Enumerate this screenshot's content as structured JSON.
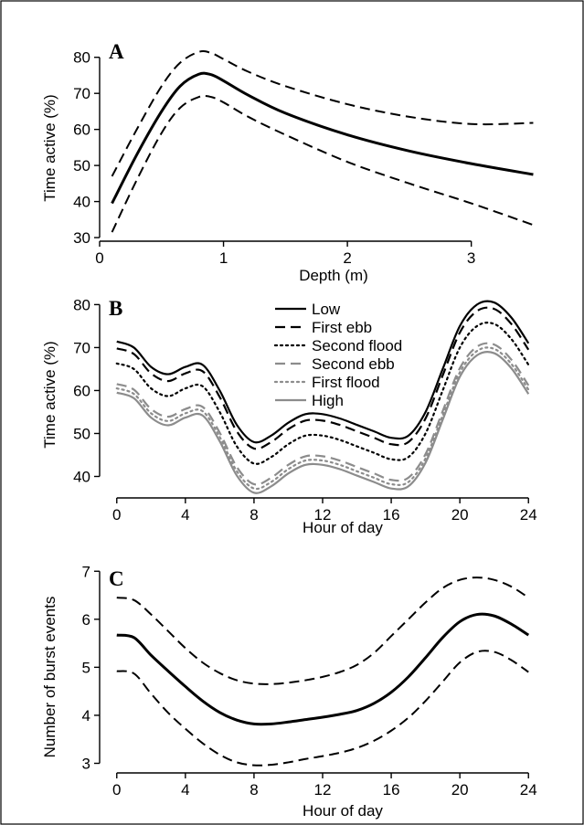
{
  "chart_data": [
    {
      "panel": "A",
      "type": "line",
      "xlabel": "Depth (m)",
      "ylabel": "Time active (%)",
      "xlim": [
        0,
        3.6
      ],
      "ylim": [
        29,
        85
      ],
      "xticks": [
        0,
        1,
        2,
        3
      ],
      "yticks": [
        30,
        40,
        50,
        60,
        70,
        80
      ],
      "grid": false,
      "series": [
        {
          "style": "solid",
          "color": "#000000",
          "width": 3,
          "x": [
            0.1,
            0.3,
            0.5,
            0.65,
            0.8,
            0.9,
            1.0,
            1.2,
            1.5,
            2.0,
            2.5,
            3.0,
            3.5
          ],
          "y": [
            39.5,
            53,
            65,
            72,
            75.3,
            75.2,
            73.5,
            69.5,
            64.5,
            58.5,
            54,
            50.5,
            47.5
          ]
        },
        {
          "style": "dashed",
          "color": "#000000",
          "width": 2,
          "x": [
            0.1,
            0.3,
            0.5,
            0.65,
            0.8,
            0.9,
            1.0,
            1.2,
            1.5,
            2.0,
            2.5,
            3.0,
            3.5
          ],
          "y": [
            47,
            60,
            72,
            78.5,
            81.5,
            81.2,
            79.5,
            76,
            72,
            67,
            63.5,
            61.5,
            61.8
          ]
        },
        {
          "style": "dashed",
          "color": "#000000",
          "width": 2,
          "x": [
            0.1,
            0.3,
            0.5,
            0.65,
            0.8,
            0.9,
            1.0,
            1.2,
            1.5,
            2.0,
            2.5,
            3.0,
            3.5
          ],
          "y": [
            31.5,
            46,
            59,
            66,
            69,
            69,
            67.5,
            63.5,
            58.5,
            51,
            45,
            39.5,
            33.5
          ]
        }
      ]
    },
    {
      "panel": "B",
      "type": "line",
      "xlabel": "Hour of day",
      "ylabel": "Time active (%)",
      "xlim": [
        -1,
        25
      ],
      "ylim": [
        35,
        82
      ],
      "xticks": [
        0,
        4,
        8,
        12,
        16,
        20,
        24
      ],
      "yticks": [
        40,
        50,
        60,
        70,
        80
      ],
      "grid": false,
      "legend_position": "top-center",
      "x": [
        0,
        1,
        2,
        3,
        4,
        5,
        6,
        7,
        8,
        9,
        10,
        11,
        12,
        13,
        14,
        15,
        16,
        17,
        18,
        19,
        20,
        21,
        22,
        23,
        24
      ],
      "series": [
        {
          "name": "Low",
          "style": "solid",
          "color": "#000000",
          "y": [
            71.4,
            70,
            65.5,
            63.8,
            65.5,
            66,
            60,
            52,
            48,
            49.5,
            52.5,
            54.5,
            54.5,
            53.5,
            52,
            50.5,
            49,
            49.5,
            55,
            65,
            75,
            80,
            80.5,
            77,
            71
          ]
        },
        {
          "name": "First ebb",
          "style": "dashed",
          "color": "#000000",
          "y": [
            69.8,
            68.5,
            64,
            62.2,
            64,
            64.5,
            58.5,
            50.5,
            46.5,
            48,
            51,
            53,
            53,
            52,
            50.5,
            49,
            47.5,
            48,
            53.5,
            63.5,
            73.5,
            78.5,
            79,
            75.5,
            69.5
          ]
        },
        {
          "name": "Second flood",
          "style": "dotted",
          "color": "#000000",
          "y": [
            66.3,
            65,
            60.5,
            58.7,
            60.5,
            61,
            55,
            47,
            43,
            44.5,
            47.5,
            49.5,
            49.5,
            48.5,
            47,
            45.5,
            44,
            44.5,
            50,
            60,
            70,
            75,
            75.5,
            72,
            66
          ]
        },
        {
          "name": "Second ebb",
          "style": "dashed",
          "color": "#8c8c8c",
          "y": [
            61.5,
            60.2,
            55.7,
            53.9,
            55.7,
            56.2,
            50.2,
            42.2,
            38.2,
            39.7,
            42.7,
            44.7,
            44.7,
            43.7,
            42.2,
            40.7,
            39.2,
            39.7,
            45.2,
            55.2,
            65.2,
            70.2,
            70.7,
            67.2,
            61.2
          ]
        },
        {
          "name": "First flood",
          "style": "dotted",
          "color": "#8c8c8c",
          "y": [
            60.5,
            59.2,
            54.7,
            52.9,
            54.7,
            55.2,
            49.2,
            41.2,
            37.2,
            38.7,
            41.7,
            43.7,
            43.7,
            42.7,
            41.2,
            39.7,
            38.2,
            38.7,
            44.2,
            54.2,
            64.2,
            69.2,
            69.7,
            66.2,
            60.2
          ]
        },
        {
          "name": "High",
          "style": "solid",
          "color": "#8c8c8c",
          "y": [
            59.5,
            58.2,
            53.7,
            51.9,
            53.7,
            54.2,
            48.2,
            40.2,
            36.2,
            37.7,
            40.7,
            42.7,
            42.7,
            41.7,
            40.2,
            38.7,
            37.2,
            37.7,
            43.2,
            53.2,
            63.2,
            68.2,
            68.7,
            65.2,
            59.2
          ]
        }
      ]
    },
    {
      "panel": "C",
      "type": "line",
      "xlabel": "Hour of day",
      "ylabel": "Number of burst events",
      "xlim": [
        -1,
        25
      ],
      "ylim": [
        2.8,
        7.1
      ],
      "xticks": [
        0,
        4,
        8,
        12,
        16,
        20,
        24
      ],
      "yticks": [
        3,
        4,
        5,
        6,
        7
      ],
      "grid": false,
      "x": [
        0,
        1,
        2,
        3,
        4,
        5,
        6,
        7,
        8,
        9,
        10,
        11,
        12,
        13,
        14,
        15,
        16,
        17,
        18,
        19,
        20,
        21,
        22,
        23,
        24
      ],
      "series": [
        {
          "style": "solid",
          "color": "#000000",
          "width": 3,
          "y": [
            5.67,
            5.62,
            5.25,
            4.92,
            4.6,
            4.3,
            4.06,
            3.9,
            3.82,
            3.82,
            3.86,
            3.91,
            3.96,
            4.02,
            4.1,
            4.25,
            4.48,
            4.8,
            5.2,
            5.62,
            5.95,
            6.1,
            6.07,
            5.9,
            5.67
          ]
        },
        {
          "style": "dashed",
          "color": "#000000",
          "width": 2,
          "y": [
            6.45,
            6.4,
            6.1,
            5.75,
            5.4,
            5.1,
            4.88,
            4.73,
            4.66,
            4.65,
            4.68,
            4.73,
            4.8,
            4.9,
            5.05,
            5.3,
            5.65,
            6.0,
            6.35,
            6.65,
            6.82,
            6.87,
            6.82,
            6.68,
            6.45
          ]
        },
        {
          "style": "dashed",
          "color": "#000000",
          "width": 2,
          "y": [
            4.92,
            4.87,
            4.45,
            4.05,
            3.72,
            3.42,
            3.18,
            3.02,
            2.96,
            2.97,
            3.02,
            3.09,
            3.15,
            3.22,
            3.32,
            3.47,
            3.68,
            3.95,
            4.3,
            4.7,
            5.1,
            5.32,
            5.32,
            5.15,
            4.9
          ]
        }
      ]
    }
  ]
}
